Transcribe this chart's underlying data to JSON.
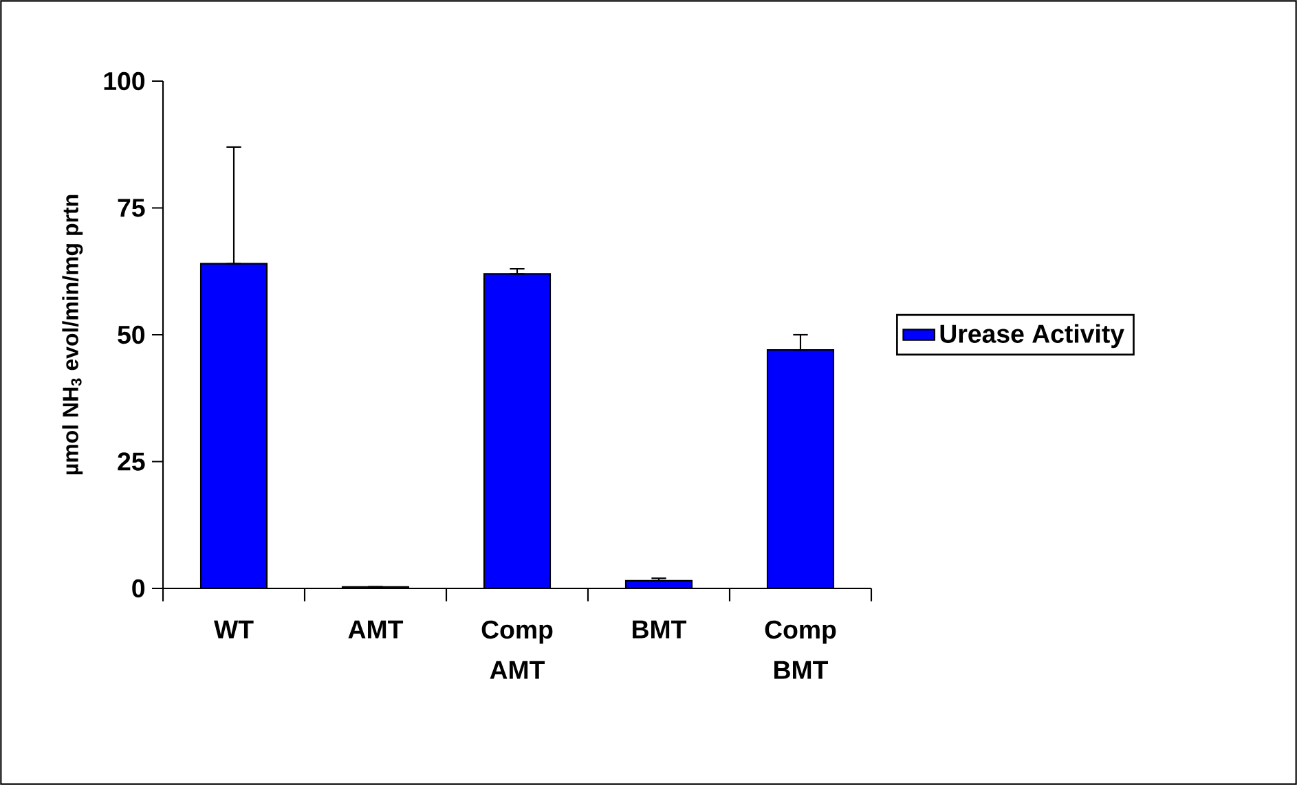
{
  "chart_data": {
    "type": "bar",
    "ylabel": "µmol NH$_{3}$ evol/min/mg prtn",
    "categories": [
      "WT",
      "AMT",
      "Comp AMT",
      "BMT",
      "Comp BMT"
    ],
    "series": [
      {
        "name": "Urease Activity",
        "color": "#0000ff",
        "values": [
          64,
          0.3,
          62,
          1.5,
          47
        ],
        "errors": [
          [
            64,
            87
          ],
          [
            0.3,
            0.3
          ],
          [
            62,
            63
          ],
          [
            1.5,
            2
          ],
          [
            47,
            50
          ]
        ]
      }
    ],
    "ylim": [
      0,
      100
    ],
    "yticks": [
      0,
      25,
      50,
      75,
      100
    ],
    "grid": false,
    "legend": "right"
  }
}
